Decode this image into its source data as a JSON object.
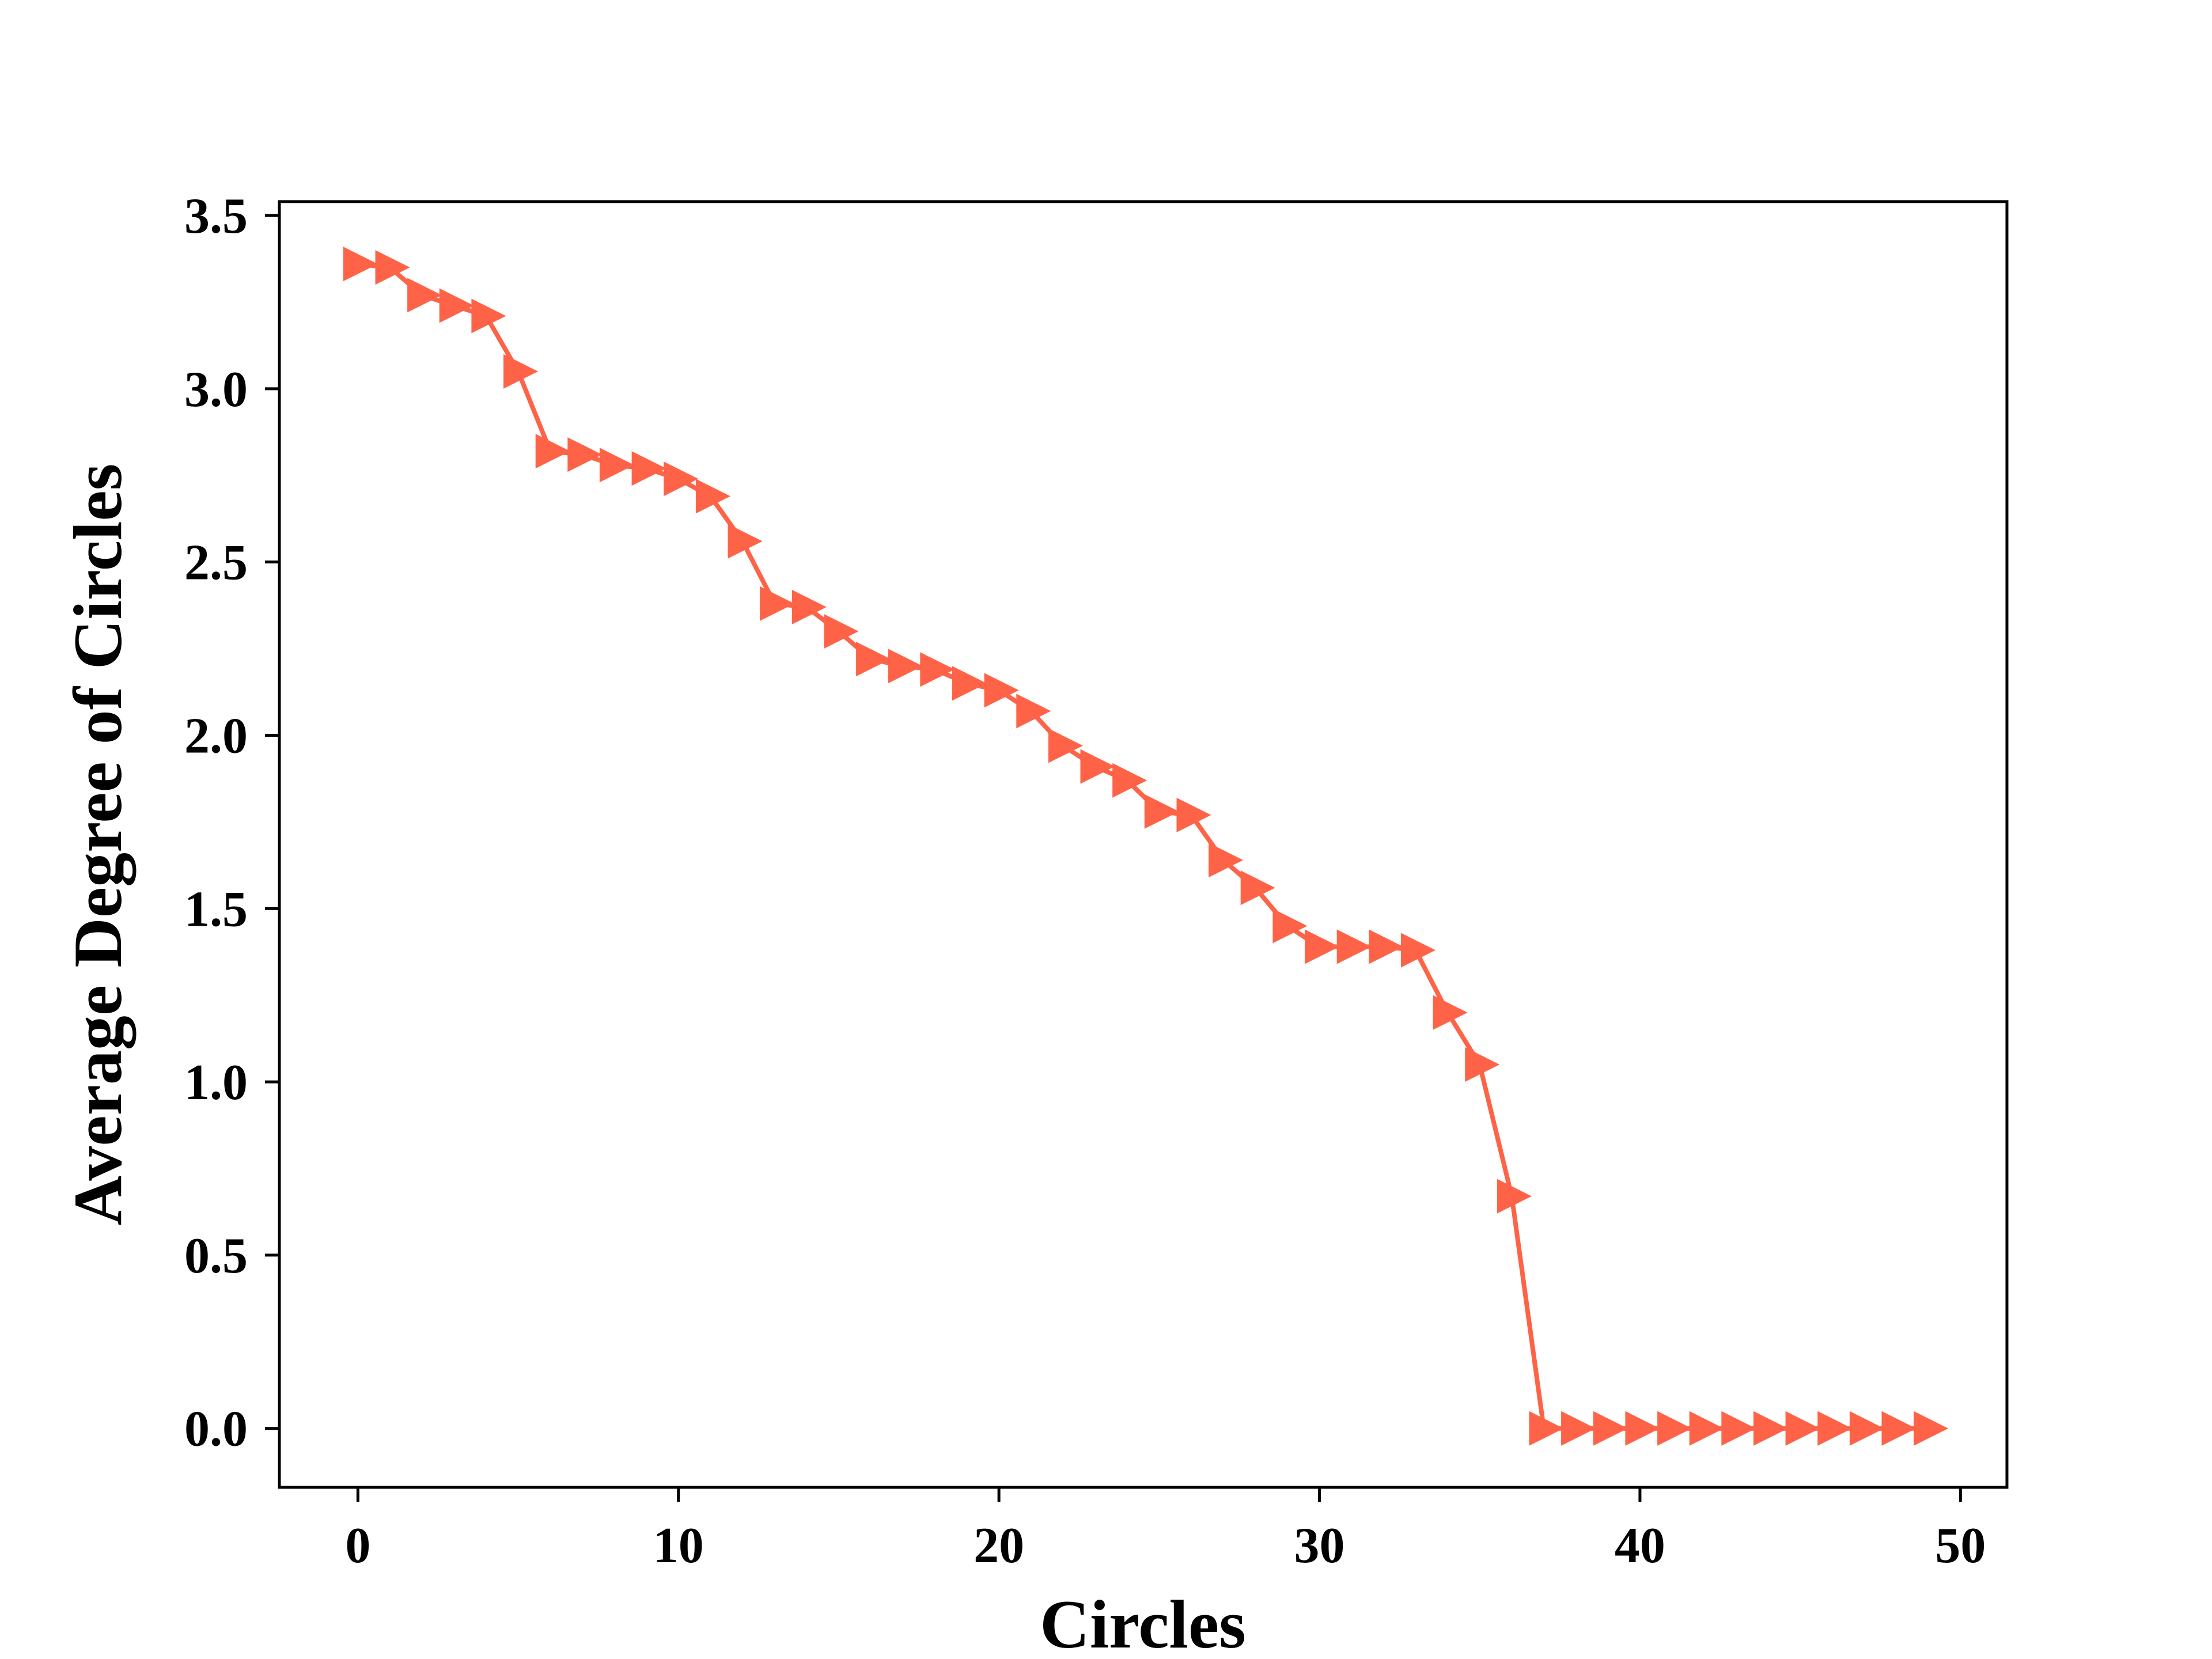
{
  "chart_data": {
    "type": "line",
    "title": "",
    "xlabel": "Circles",
    "ylabel": "Average Degree of Circles",
    "xlim": [
      -2.45,
      51.45
    ],
    "ylim": [
      -0.17,
      3.54
    ],
    "xticks": [
      0,
      10,
      20,
      30,
      40,
      50
    ],
    "xtick_labels": [
      "0",
      "10",
      "20",
      "30",
      "40",
      "50"
    ],
    "yticks": [
      0.0,
      0.5,
      1.0,
      1.5,
      2.0,
      2.5,
      3.0,
      3.5
    ],
    "ytick_labels": [
      "0.0",
      "0.5",
      "1.0",
      "1.5",
      "2.0",
      "2.5",
      "3.0",
      "3.5"
    ],
    "grid": false,
    "legend": "none",
    "marker": "triangle-right",
    "color": "#ff6347",
    "x": [
      0,
      1,
      2,
      3,
      4,
      5,
      6,
      7,
      8,
      9,
      10,
      11,
      12,
      13,
      14,
      15,
      16,
      17,
      18,
      19,
      20,
      21,
      22,
      23,
      24,
      25,
      26,
      27,
      28,
      29,
      30,
      31,
      32,
      33,
      34,
      35,
      36,
      37,
      38,
      39,
      40,
      41,
      42,
      43,
      44,
      45,
      46,
      47,
      48,
      49
    ],
    "y": [
      3.36,
      3.35,
      3.27,
      3.24,
      3.21,
      3.05,
      2.82,
      2.81,
      2.78,
      2.77,
      2.74,
      2.69,
      2.56,
      2.38,
      2.37,
      2.3,
      2.22,
      2.2,
      2.19,
      2.15,
      2.13,
      2.07,
      1.97,
      1.91,
      1.87,
      1.78,
      1.77,
      1.64,
      1.56,
      1.45,
      1.39,
      1.39,
      1.39,
      1.38,
      1.2,
      1.05,
      0.67,
      0.0,
      0.0,
      0.0,
      0.0,
      0.0,
      0.0,
      0.0,
      0.0,
      0.0,
      0.0,
      0.0,
      0.0,
      0.0
    ]
  }
}
